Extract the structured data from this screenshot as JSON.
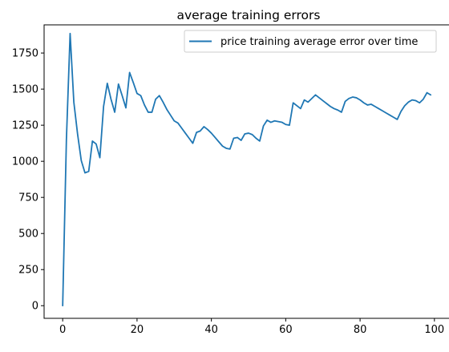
{
  "chart_data": {
    "type": "line",
    "title": "average training errors",
    "xlabel": "",
    "ylabel": "",
    "xlim": [
      -5,
      105
    ],
    "ylim": [
      -87.5,
      1945
    ],
    "xticks": [
      0,
      20,
      40,
      60,
      80,
      100
    ],
    "yticks": [
      0,
      250,
      500,
      750,
      1000,
      1250,
      1500,
      1750
    ],
    "grid": false,
    "legend": {
      "placement": "top-right"
    },
    "colors": {
      "series": "#1f77b4",
      "axes": "#000000"
    },
    "series": [
      {
        "name": "price training average error over time",
        "x": [
          0,
          1,
          2,
          3,
          4,
          5,
          6,
          7,
          8,
          9,
          10,
          11,
          12,
          13,
          14,
          15,
          16,
          17,
          18,
          19,
          20,
          21,
          22,
          23,
          24,
          25,
          26,
          27,
          28,
          29,
          30,
          31,
          32,
          33,
          34,
          35,
          36,
          37,
          38,
          39,
          40,
          41,
          42,
          43,
          44,
          45,
          46,
          47,
          48,
          49,
          50,
          51,
          52,
          53,
          54,
          55,
          56,
          57,
          58,
          59,
          60,
          61,
          62,
          63,
          64,
          65,
          66,
          67,
          68,
          69,
          70,
          71,
          72,
          73,
          74,
          75,
          76,
          77,
          78,
          79,
          80,
          81,
          82,
          83,
          84,
          85,
          86,
          87,
          88,
          89,
          90,
          91,
          92,
          93,
          94,
          95,
          96,
          97,
          98,
          99
        ],
        "values": [
          0,
          1150,
          1885,
          1410,
          1190,
          1005,
          920,
          930,
          1140,
          1120,
          1025,
          1380,
          1540,
          1430,
          1340,
          1535,
          1455,
          1370,
          1615,
          1545,
          1470,
          1455,
          1390,
          1340,
          1340,
          1430,
          1455,
          1410,
          1360,
          1320,
          1280,
          1265,
          1230,
          1195,
          1160,
          1125,
          1200,
          1210,
          1240,
          1220,
          1195,
          1165,
          1135,
          1105,
          1090,
          1085,
          1160,
          1165,
          1145,
          1190,
          1195,
          1185,
          1160,
          1140,
          1245,
          1285,
          1270,
          1280,
          1275,
          1270,
          1255,
          1250,
          1405,
          1385,
          1365,
          1425,
          1410,
          1435,
          1460,
          1440,
          1420,
          1400,
          1380,
          1365,
          1355,
          1340,
          1415,
          1435,
          1445,
          1440,
          1425,
          1405,
          1390,
          1395,
          1380,
          1365,
          1350,
          1335,
          1320,
          1305,
          1290,
          1345,
          1385,
          1410,
          1425,
          1420,
          1405,
          1430,
          1475,
          1460
        ]
      }
    ]
  }
}
